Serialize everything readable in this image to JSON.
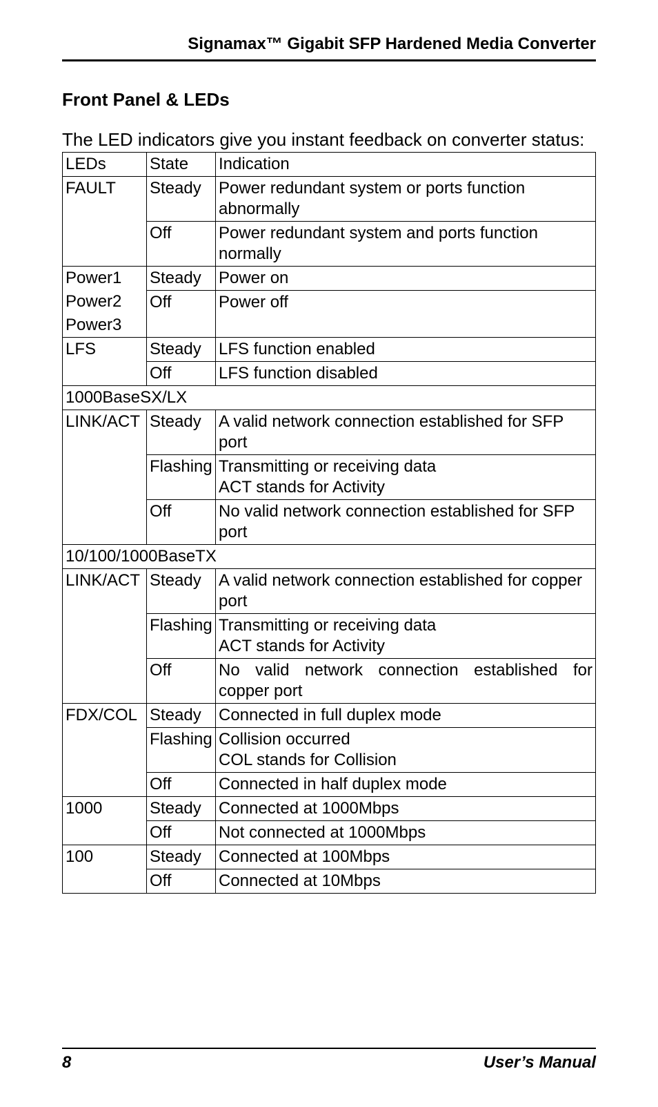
{
  "header": {
    "title": "Signamax™ Gigabit SFP Hardened Media Converter"
  },
  "section": {
    "title": "Front Panel & LEDs"
  },
  "intro": "The LED indicators give you instant feedback on converter status:",
  "table": {
    "headers": {
      "leds": "LEDs",
      "state": "State",
      "indication": "Indication"
    },
    "fault": {
      "label": "FAULT",
      "steady": {
        "state": "Steady",
        "text": "Power redundant system or ports function abnormally"
      },
      "off": {
        "state": "Off",
        "text": "Power redundant system and ports function normally"
      }
    },
    "power": {
      "l1": "Power1",
      "l2": "Power2",
      "l3": "Power3",
      "steady": {
        "state": "Steady",
        "text": "Power on"
      },
      "off": {
        "state": "Off",
        "text": "Power off"
      }
    },
    "lfs": {
      "label": "LFS",
      "steady": {
        "state": "Steady",
        "text": "LFS function enabled"
      },
      "off": {
        "state": "Off",
        "text": "LFS function disabled"
      }
    },
    "sxlx": {
      "header": "1000BaseSX/LX",
      "linkact": {
        "label": "LINK/ACT",
        "steady": {
          "state": "Steady",
          "text": "A valid network connection established for SFP port"
        },
        "flashing": {
          "state": "Flashing",
          "text": "Transmitting or receiving data\nACT stands for Activity"
        },
        "off": {
          "state": "Off",
          "text": "No valid network connection established for SFP port"
        }
      }
    },
    "basetx": {
      "header": "10/100/1000BaseTX",
      "linkact": {
        "label": "LINK/ACT",
        "steady": {
          "state": "Steady",
          "text": "A valid network connection established for copper port"
        },
        "flashing": {
          "state": "Flashing",
          "text": "Transmitting or receiving data\nACT stands for Activity"
        },
        "off": {
          "state": "Off",
          "text": "No valid network connection established for copper port"
        }
      },
      "fdxcol": {
        "label": "FDX/COL",
        "steady": {
          "state": "Steady",
          "text": "Connected in full duplex mode"
        },
        "flashing": {
          "state": "Flashing",
          "text": "Collision occurred\nCOL stands for Collision"
        },
        "off": {
          "state": "Off",
          "text": "Connected in half duplex mode"
        }
      },
      "s1000": {
        "label": "1000",
        "steady": {
          "state": "Steady",
          "text": "Connected at 1000Mbps"
        },
        "off": {
          "state": "Off",
          "text": "Not connected at 1000Mbps"
        }
      },
      "s100": {
        "label": "100",
        "steady": {
          "state": "Steady",
          "text": "Connected at 100Mbps"
        },
        "off": {
          "state": "Off",
          "text": "Connected at 10Mbps"
        }
      }
    }
  },
  "footer": {
    "page": "8",
    "manual": "User’s Manual"
  }
}
